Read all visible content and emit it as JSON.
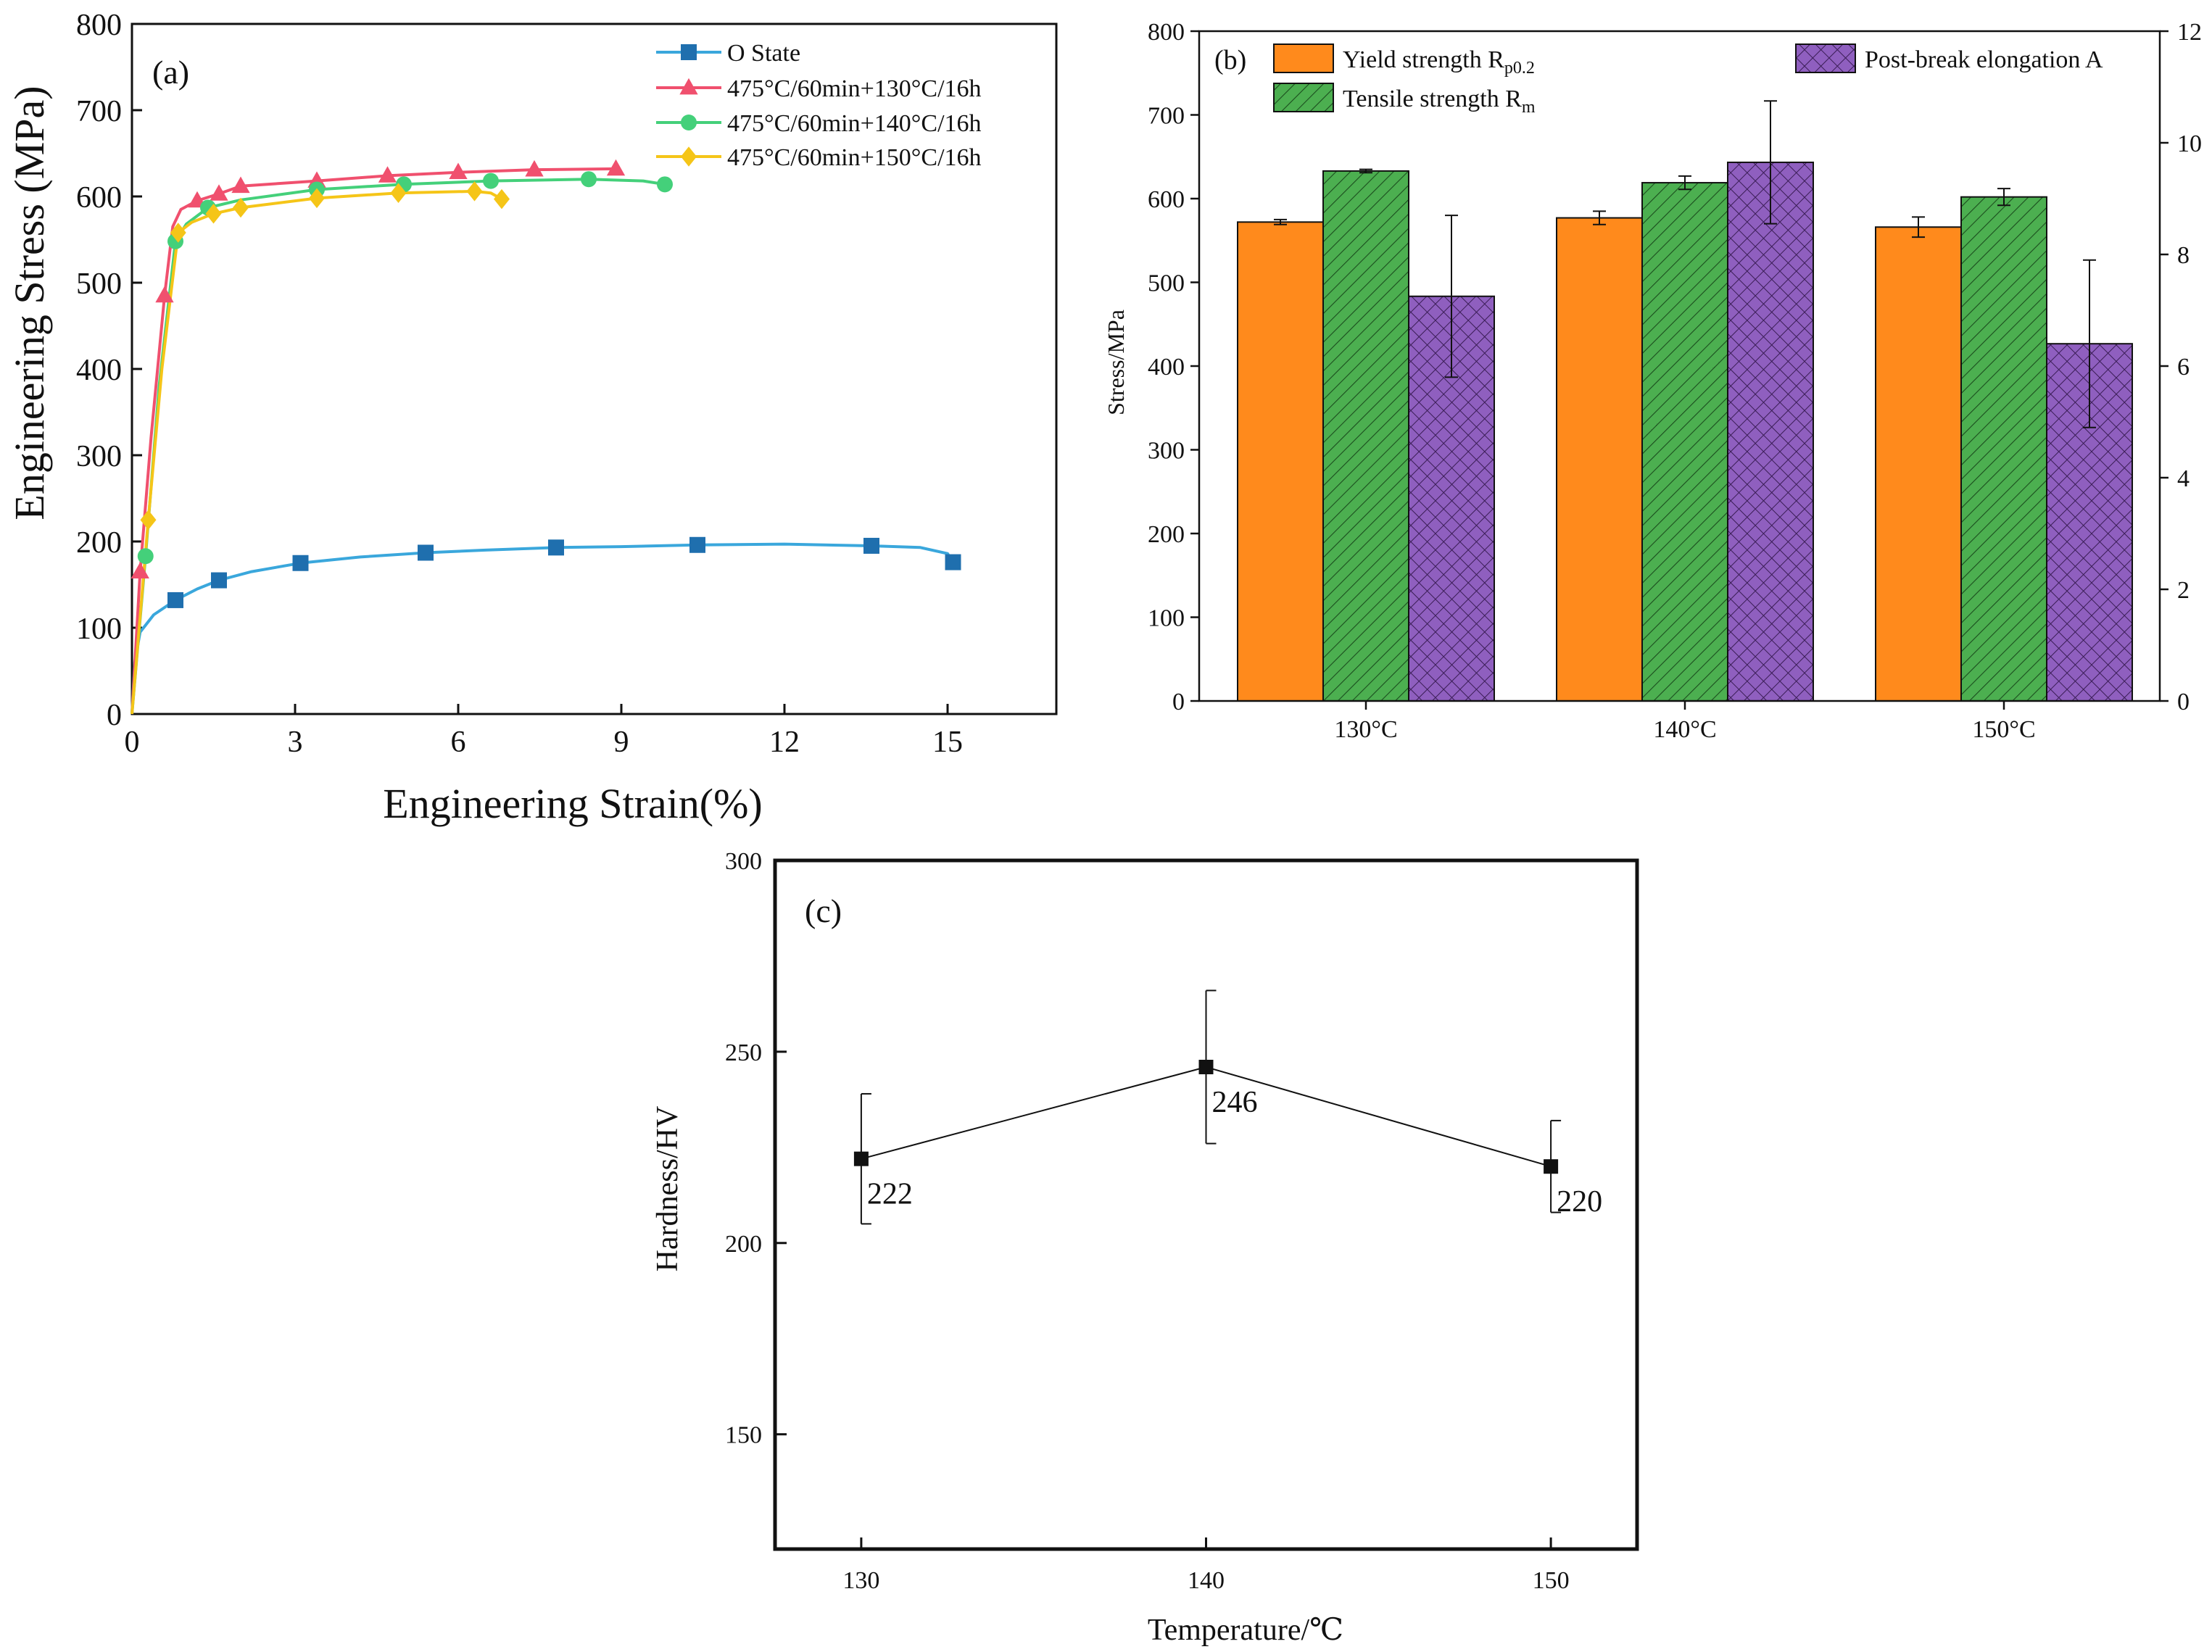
{
  "colors": {
    "o_state": "#3aa7dc",
    "o_state_marker": "#1f6fae",
    "t130": "#f0506e",
    "t140": "#44d07a",
    "t150": "#f5c518",
    "yield": "#ff8a1c",
    "tensile": "#4caf50",
    "elong": "#8f5fbf",
    "axis": "#111111"
  },
  "chart_data": [
    {
      "panel": "a",
      "type": "line",
      "panel_label": "(a)",
      "xlabel": "Engineering Strain(%)",
      "ylabel": "Engineering Stress (MPa)",
      "xlim": [
        0,
        17
      ],
      "ylim": [
        0,
        800
      ],
      "xticks": [
        "0",
        "3",
        "6",
        "9",
        "12",
        "15"
      ],
      "xtick_values": [
        0,
        3,
        6,
        9,
        12,
        15
      ],
      "yticks": [
        "0",
        "100",
        "200",
        "300",
        "400",
        "500",
        "600",
        "700",
        "800"
      ],
      "ytick_values": [
        0,
        100,
        200,
        300,
        400,
        500,
        600,
        700,
        800
      ],
      "legend_position": "top-right",
      "series": [
        {
          "name": "O State",
          "color_key": "o_state",
          "marker": "square",
          "curve": [
            [
              0,
              0
            ],
            [
              0.05,
              60
            ],
            [
              0.15,
              95
            ],
            [
              0.4,
              115
            ],
            [
              0.8,
              132
            ],
            [
              1.2,
              145
            ],
            [
              1.6,
              155
            ],
            [
              2.2,
              165
            ],
            [
              3.1,
              175
            ],
            [
              4.2,
              182
            ],
            [
              5.4,
              187
            ],
            [
              6.5,
              190
            ],
            [
              7.8,
              193
            ],
            [
              9,
              194
            ],
            [
              10.4,
              196
            ],
            [
              12,
              197
            ],
            [
              13.6,
              195
            ],
            [
              14.5,
              193
            ],
            [
              15.0,
              186
            ],
            [
              15.1,
              176
            ]
          ],
          "markers": [
            [
              0.8,
              132
            ],
            [
              1.6,
              155
            ],
            [
              3.1,
              175
            ],
            [
              5.4,
              187
            ],
            [
              7.8,
              193
            ],
            [
              10.4,
              196
            ],
            [
              13.6,
              195
            ],
            [
              15.1,
              176
            ]
          ]
        },
        {
          "name": "475°C/60min+130°C/16h",
          "color_key": "t130",
          "marker": "triangle",
          "curve": [
            [
              0,
              0
            ],
            [
              0.15,
              165
            ],
            [
              0.35,
              320
            ],
            [
              0.6,
              485
            ],
            [
              0.75,
              565
            ],
            [
              0.9,
              585
            ],
            [
              1.2,
              595
            ],
            [
              1.6,
              603
            ],
            [
              2.0,
              612
            ],
            [
              3.4,
              618
            ],
            [
              4.7,
              624
            ],
            [
              6.0,
              628
            ],
            [
              7.4,
              631
            ],
            [
              8.9,
              632
            ]
          ],
          "markers": [
            [
              0.15,
              165
            ],
            [
              0.6,
              485
            ],
            [
              1.2,
              595
            ],
            [
              1.6,
              603
            ],
            [
              2.0,
              612
            ],
            [
              3.4,
              618
            ],
            [
              4.7,
              624
            ],
            [
              6.0,
              628
            ],
            [
              7.4,
              631
            ],
            [
              8.9,
              632
            ]
          ]
        },
        {
          "name": "475°C/60min+140°C/16h",
          "color_key": "t140",
          "marker": "circle",
          "curve": [
            [
              0,
              0
            ],
            [
              0.25,
              183
            ],
            [
              0.5,
              380
            ],
            [
              0.8,
              548
            ],
            [
              1.0,
              568
            ],
            [
              1.4,
              587
            ],
            [
              2.0,
              596
            ],
            [
              3.4,
              608
            ],
            [
              5.0,
              614
            ],
            [
              6.6,
              618
            ],
            [
              8.4,
              620
            ],
            [
              9.4,
              618
            ],
            [
              9.8,
              614
            ]
          ],
          "markers": [
            [
              0.25,
              183
            ],
            [
              0.8,
              548
            ],
            [
              1.4,
              587
            ],
            [
              3.4,
              608
            ],
            [
              5.0,
              614
            ],
            [
              6.6,
              618
            ],
            [
              8.4,
              620
            ],
            [
              9.8,
              614
            ]
          ]
        },
        {
          "name": "475°C/60min+150°C/16h",
          "color_key": "t150",
          "marker": "diamond",
          "curve": [
            [
              0,
              0
            ],
            [
              0.3,
              225
            ],
            [
              0.55,
              400
            ],
            [
              0.85,
              558
            ],
            [
              1.1,
              570
            ],
            [
              1.5,
              580
            ],
            [
              2.0,
              587
            ],
            [
              3.4,
              598
            ],
            [
              4.9,
              604
            ],
            [
              6.3,
              606
            ],
            [
              6.6,
              604
            ],
            [
              6.8,
              597
            ]
          ],
          "markers": [
            [
              0.3,
              225
            ],
            [
              0.85,
              558
            ],
            [
              1.5,
              580
            ],
            [
              2.0,
              587
            ],
            [
              3.4,
              598
            ],
            [
              4.9,
              604
            ],
            [
              6.3,
              606
            ],
            [
              6.8,
              597
            ]
          ]
        }
      ]
    },
    {
      "panel": "b",
      "type": "bar",
      "panel_label": "(b)",
      "categories": [
        "130°C",
        "140°C",
        "150°C"
      ],
      "ylabel": "Stress/MPa",
      "ylim": [
        0,
        800
      ],
      "yticks": [
        "0",
        "100",
        "200",
        "300",
        "400",
        "500",
        "600",
        "700",
        "800"
      ],
      "ytick_values": [
        0,
        100,
        200,
        300,
        400,
        500,
        600,
        700,
        800
      ],
      "y2lim": [
        0,
        12
      ],
      "y2ticks": [
        "0",
        "2",
        "4",
        "6",
        "8",
        "10",
        "12"
      ],
      "y2tick_values": [
        0,
        2,
        4,
        6,
        8,
        10,
        12
      ],
      "legend_position": "top",
      "series": [
        {
          "name": "Yield strength R",
          "sub": "p0.2",
          "color_key": "yield",
          "pattern": "none",
          "axis": "left",
          "values": [
            572,
            577,
            566
          ],
          "errors": [
            3,
            8,
            12
          ]
        },
        {
          "name": "Tensile strength R",
          "sub": "m",
          "color_key": "tensile",
          "pattern": "hatch",
          "axis": "left",
          "values": [
            633,
            619,
            602
          ],
          "errors": [
            2,
            8,
            10
          ]
        },
        {
          "name": "Post-break elongation A",
          "sub": "",
          "color_key": "elong",
          "pattern": "cross",
          "axis": "right",
          "values": [
            7.25,
            9.65,
            6.4
          ],
          "errors": [
            1.45,
            1.1,
            1.5
          ]
        }
      ]
    },
    {
      "panel": "c",
      "type": "line",
      "panel_label": "(c)",
      "xlabel": "Temperature/℃",
      "ylabel": "Hardness/HV",
      "xlim": [
        127.5,
        152.5
      ],
      "ylim": [
        120,
        300
      ],
      "xticks": [
        "130",
        "140",
        "150"
      ],
      "xtick_values": [
        130,
        140,
        150
      ],
      "yticks": [
        "150",
        "200",
        "250",
        "300"
      ],
      "ytick_values": [
        150,
        200,
        250,
        300
      ],
      "x": [
        130,
        140,
        150
      ],
      "values": [
        222,
        246,
        220
      ],
      "errors": [
        17,
        20,
        12
      ],
      "data_labels": [
        "222",
        "246",
        "220"
      ]
    }
  ]
}
